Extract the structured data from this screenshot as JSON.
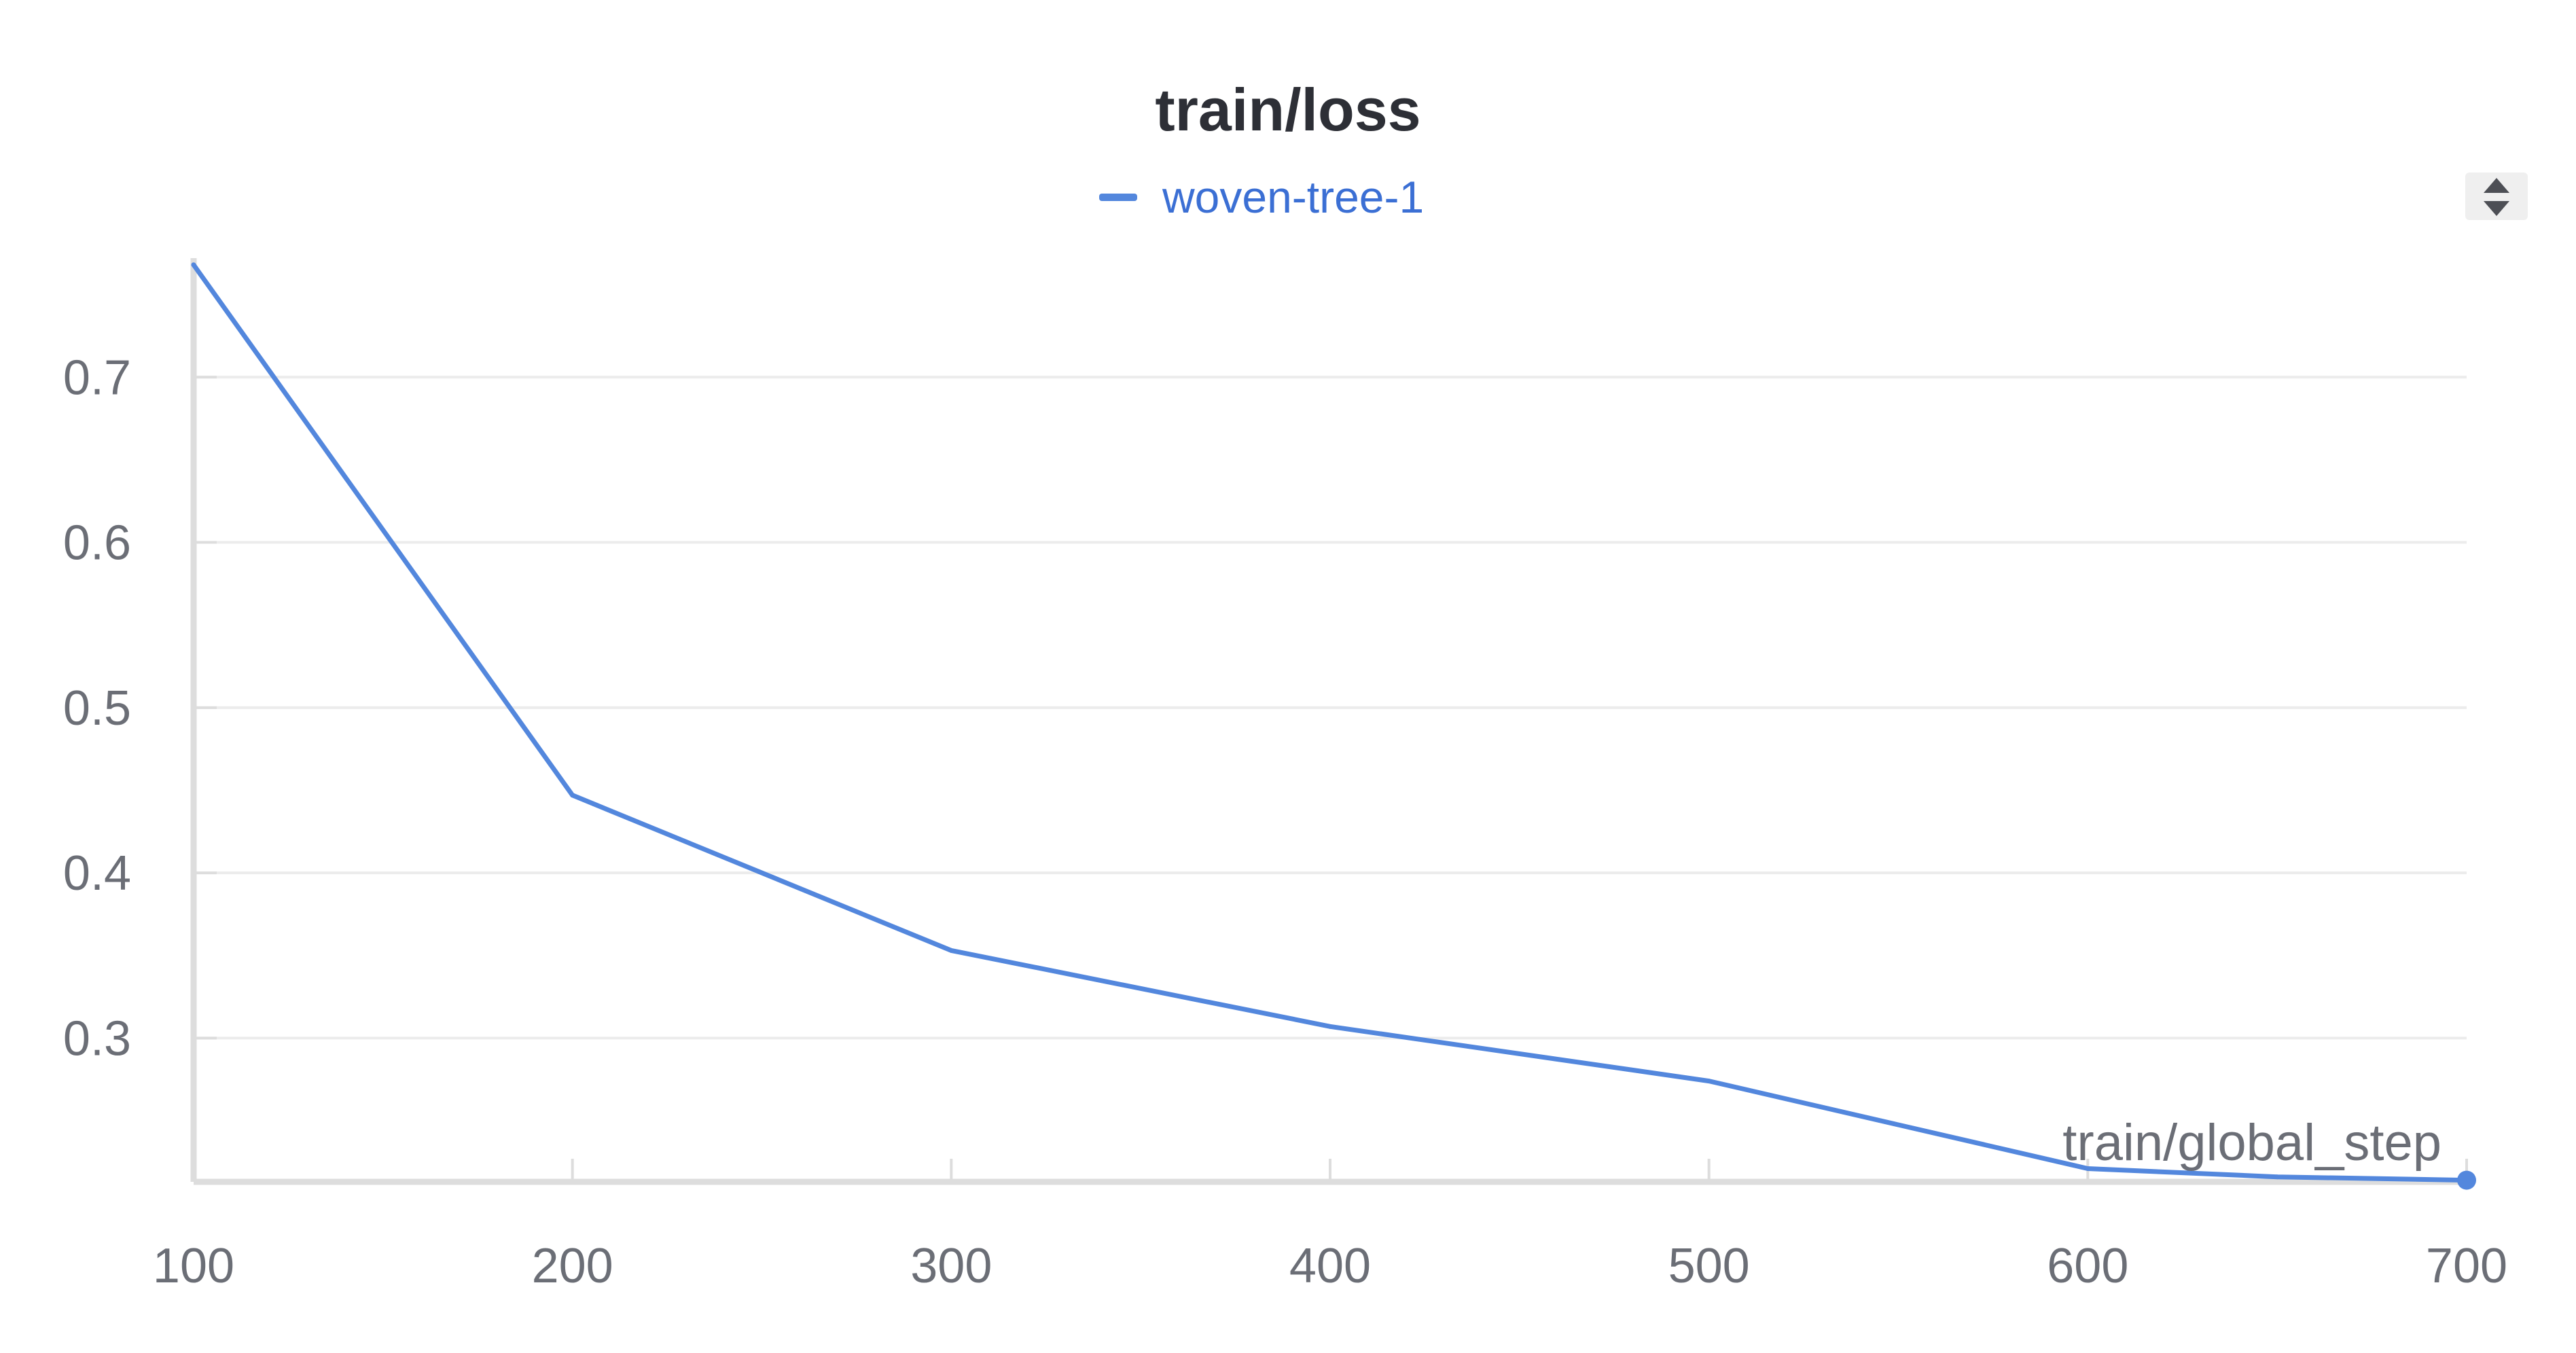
{
  "chart_data": {
    "type": "line",
    "title": "train/loss",
    "xlabel": "train/global_step",
    "ylabel": "",
    "xlim": [
      100,
      700
    ],
    "ylim": [
      0.213,
      0.77
    ],
    "grid": true,
    "legend_placement": "top-center",
    "x_ticks": [
      100,
      200,
      300,
      400,
      500,
      600,
      700
    ],
    "x_tick_labels": [
      "100",
      "200",
      "300",
      "400",
      "500",
      "600",
      "700"
    ],
    "y_ticks": [
      0.3,
      0.4,
      0.5,
      0.6,
      0.7
    ],
    "y_tick_labels": [
      "0.3",
      "0.4",
      "0.5",
      "0.6",
      "0.7"
    ],
    "series": [
      {
        "name": "woven-tree-1",
        "color": "#5387dd",
        "x": [
          100,
          200,
          300,
          400,
          500,
          600,
          650,
          700
        ],
        "y": [
          0.768,
          0.447,
          0.353,
          0.307,
          0.274,
          0.221,
          0.216,
          0.214
        ]
      }
    ]
  },
  "legend": {
    "text_color": "#3b6fd4",
    "scroll_icon": "up-down-arrows-icon"
  },
  "colors": {
    "grid": "#ececec",
    "axis": "#dddddd",
    "title": "#2d2f36",
    "ticks": "#6b6e76"
  }
}
